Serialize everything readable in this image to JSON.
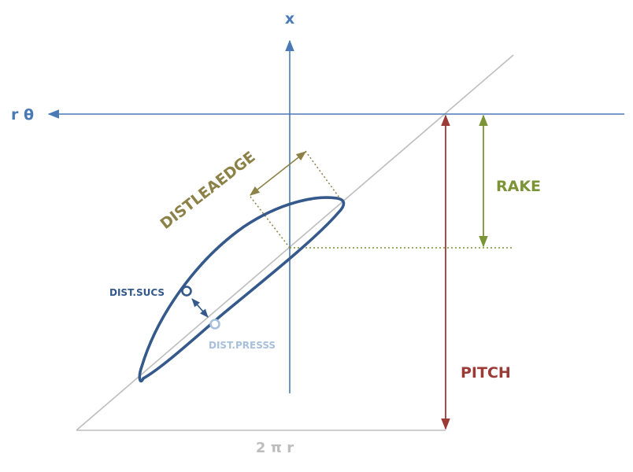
{
  "labels": {
    "x_axis": "x",
    "r_theta_axis": "r θ",
    "rake": "RAKE",
    "pitch": "PITCH",
    "dist_lead_edge": "DISTLEAEDGE",
    "dist_sucs": "DIST.SUCS",
    "dist_press": "DIST.PRESSS",
    "base": "2 π r"
  },
  "colors": {
    "axis_blue": "#4a7ab5",
    "blade_navy": "#34598a",
    "pitch_red": "#9b3a37",
    "rake_green": "#7a9436",
    "lead_edge_olive": "#8c8147",
    "press_light_blue": "#a8c0dc",
    "helix_gray": "#bdbdbd"
  }
}
